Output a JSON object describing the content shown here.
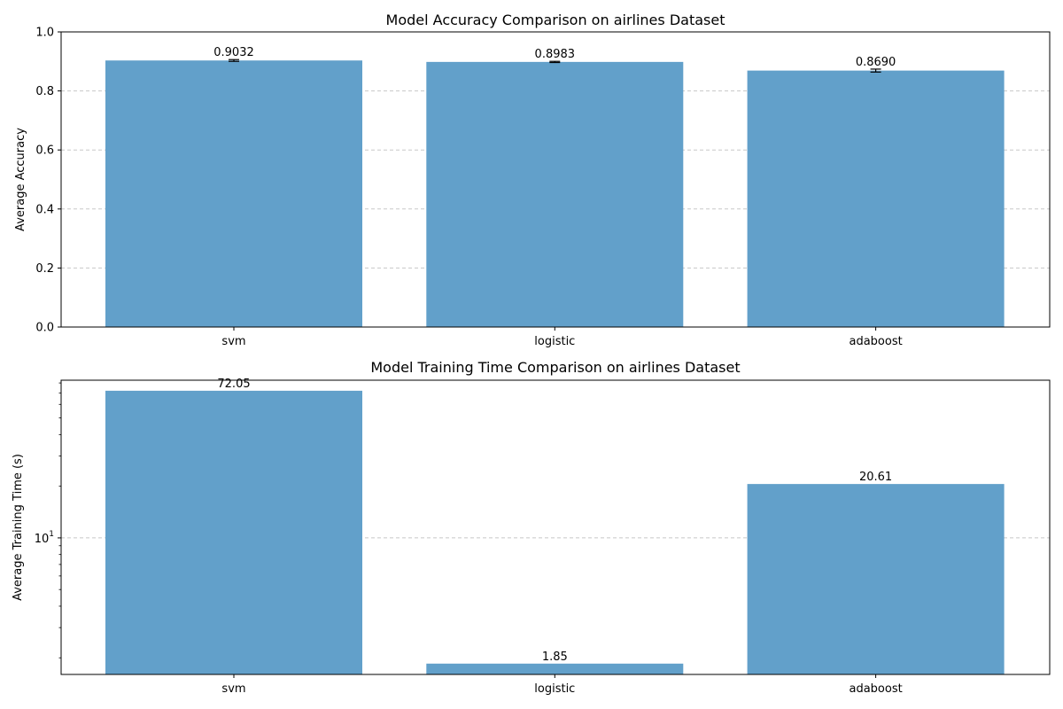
{
  "chart_data": [
    {
      "type": "bar",
      "title": "Model Accuracy Comparison on airlines Dataset",
      "xlabel": "",
      "ylabel": "Average Accuracy",
      "categories": [
        "svm",
        "logistic",
        "adaboost"
      ],
      "values": [
        0.9032,
        0.8983,
        0.869
      ],
      "value_labels": [
        "0.9032",
        "0.8983",
        "0.8690"
      ],
      "errors": [
        0.003,
        0.002,
        0.005
      ],
      "ylim": [
        0,
        1
      ],
      "y_scale": "linear",
      "yticks": [
        0,
        0.2,
        0.4,
        0.6,
        0.8,
        1.0
      ],
      "ytick_labels": [
        "0.0",
        "0.2",
        "0.4",
        "0.6",
        "0.8",
        "1.0"
      ],
      "grid": "y-dashed",
      "bar_color": "#62a0ca"
    },
    {
      "type": "bar",
      "title": "Model Training Time Comparison on airlines Dataset",
      "xlabel": "",
      "ylabel": "Average Training Time (s)",
      "categories": [
        "svm",
        "logistic",
        "adaboost"
      ],
      "values": [
        72.05,
        1.85,
        20.61
      ],
      "value_labels": [
        "72.05",
        "1.85",
        "20.61"
      ],
      "ylim": [
        1.6,
        83
      ],
      "y_scale": "log",
      "grid": "y-dashed",
      "bar_color": "#62a0ca"
    }
  ]
}
